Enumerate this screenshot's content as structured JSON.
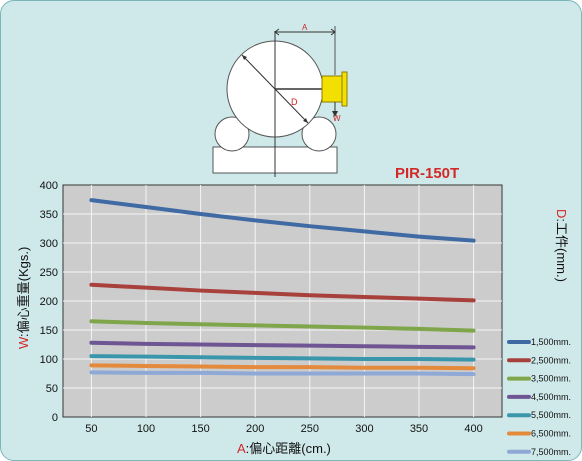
{
  "model": "PIR-150T",
  "diagram": {
    "label_a": "A",
    "label_d": "D",
    "label_w": "W"
  },
  "chart_data": {
    "type": "line",
    "title": "PIR-150T",
    "xlabel_prefix": "A",
    "xlabel_rest": ":偏心距離(cm.)",
    "ylabel_prefix": "W",
    "ylabel_rest": ":偏心重量(Kgs.)",
    "right_label_prefix": "D",
    "right_label_rest": ":工件(mm.)",
    "x": [
      50,
      100,
      150,
      200,
      250,
      300,
      350,
      400
    ],
    "xlim": [
      50,
      400
    ],
    "ylim": [
      0,
      400
    ],
    "xticks": [
      50,
      100,
      150,
      200,
      250,
      300,
      350,
      400
    ],
    "yticks": [
      0,
      50,
      100,
      150,
      200,
      250,
      300,
      350,
      400
    ],
    "grid": true,
    "legend_position": "right",
    "series": [
      {
        "name": "1,500mm.",
        "color": "#3f6aa3",
        "values": [
          374,
          362,
          350,
          339,
          329,
          320,
          311,
          304
        ]
      },
      {
        "name": "2,500mm.",
        "color": "#a8403c",
        "values": [
          228,
          223,
          218,
          214,
          210,
          207,
          204,
          201
        ]
      },
      {
        "name": "3,500mm.",
        "color": "#7fa64a",
        "values": [
          165,
          162,
          160,
          158,
          156,
          154,
          152,
          149
        ]
      },
      {
        "name": "4,500mm.",
        "color": "#6f5593",
        "values": [
          128,
          126,
          125,
          124,
          123,
          122,
          121,
          120
        ]
      },
      {
        "name": "5,500mm.",
        "color": "#3a97ab",
        "values": [
          105,
          104,
          103,
          102,
          101,
          100,
          100,
          99
        ]
      },
      {
        "name": "6,500mm.",
        "color": "#e48a3c",
        "values": [
          89,
          88,
          87,
          86,
          86,
          85,
          85,
          84
        ]
      },
      {
        "name": "7,500mm.",
        "color": "#8fa9d6",
        "values": [
          77,
          76,
          76,
          75,
          75,
          75,
          75,
          74
        ]
      }
    ]
  }
}
